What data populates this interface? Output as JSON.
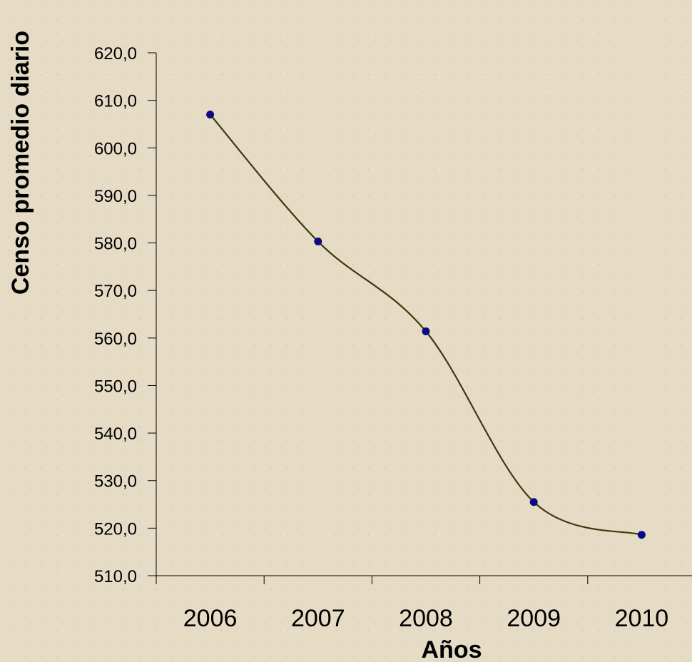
{
  "chart_data": {
    "type": "line",
    "title": "",
    "xlabel": "Años",
    "ylabel": "Censo promedio diario",
    "categories": [
      "2006",
      "2007",
      "2008",
      "2009",
      "2010"
    ],
    "series": [
      {
        "values": [
          607.0,
          580.3,
          561.4,
          525.5,
          518.6
        ]
      }
    ],
    "ylim": [
      510,
      620
    ],
    "yticks": [
      "510,0",
      "520,0",
      "530,0",
      "540,0",
      "550,0",
      "560,0",
      "570,0",
      "580,0",
      "590,0",
      "600,0",
      "610,0",
      "620,0"
    ],
    "smooth": true,
    "grid": false,
    "legend": "none",
    "colors": {
      "line": "#3d3a0e",
      "marker": "#0a0a80",
      "axis": "#000000"
    }
  }
}
